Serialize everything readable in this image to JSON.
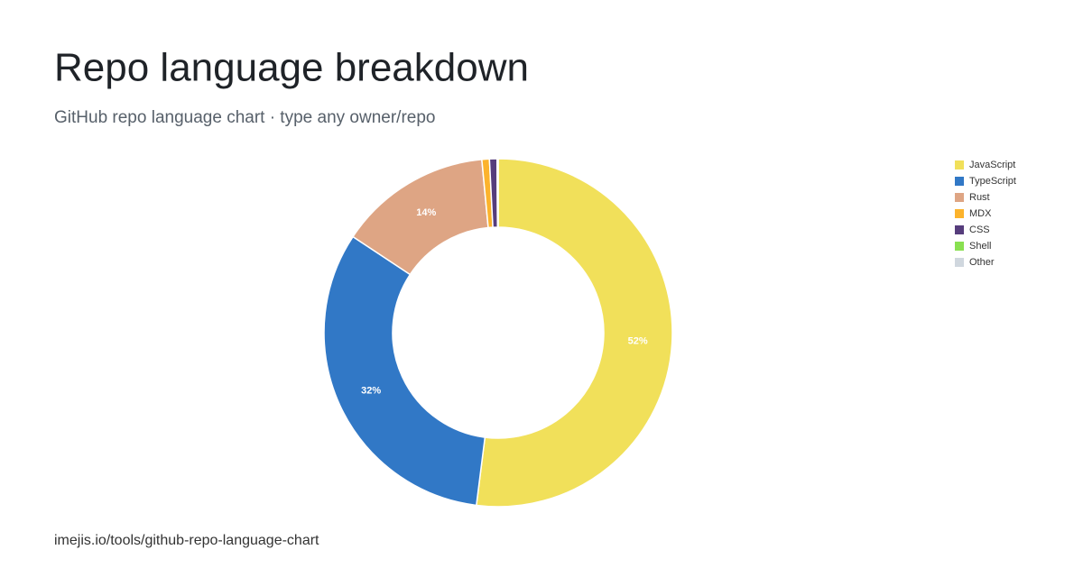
{
  "header": {
    "title": "Repo language breakdown",
    "subtitle": "GitHub repo language chart · type any owner/repo"
  },
  "footer": {
    "url": "imejis.io/tools/github-repo-language-chart"
  },
  "chart_data": {
    "type": "donut",
    "categories": [
      "JavaScript",
      "TypeScript",
      "Rust",
      "MDX",
      "CSS",
      "Shell",
      "Other"
    ],
    "values": [
      52.0,
      32.3,
      14.2,
      0.7,
      0.7,
      0.05,
      0.05
    ],
    "value_labels": [
      "52%",
      "32%",
      "14%",
      null,
      null,
      null,
      null
    ],
    "colors": [
      "#f1e05a",
      "#3178c6",
      "#dea584",
      "#fcb32c",
      "#563d7c",
      "#89e051",
      "#d0d7de"
    ],
    "legend": "top-right"
  }
}
